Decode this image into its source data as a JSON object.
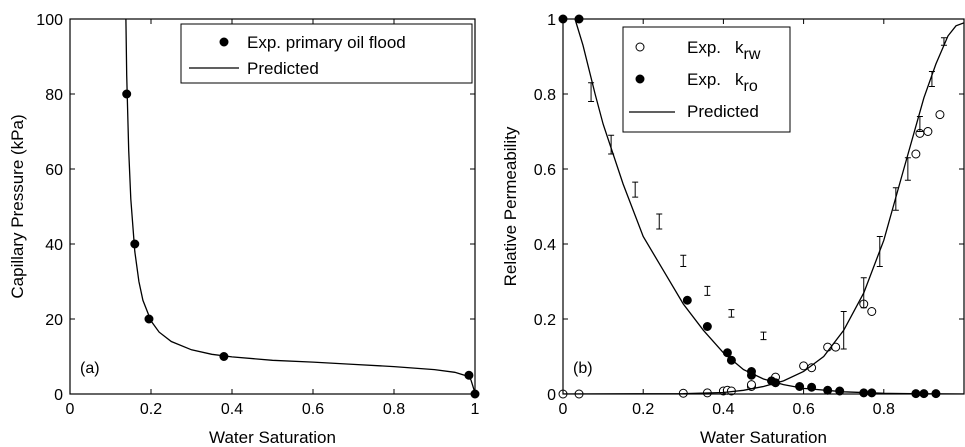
{
  "chart_data": [
    {
      "type": "scatter",
      "panel_label": "(a)",
      "xlabel": "Water Saturation",
      "ylabel": "Capillary Pressure (kPa)",
      "xlim": [
        0,
        1
      ],
      "ylim": [
        0,
        100
      ],
      "xticks": [
        "0",
        "0.2",
        "0.4",
        "0.6",
        "0.8",
        "1"
      ],
      "yticks": [
        "0",
        "20",
        "40",
        "60",
        "80",
        "100"
      ],
      "legend_position": "top-right",
      "grid": false,
      "series": [
        {
          "name": "Exp. primary oil flood",
          "kind": "points",
          "marker": "filled-circle",
          "x": [
            0.14,
            0.16,
            0.195,
            0.38,
            0.985,
            1.0
          ],
          "y": [
            80,
            40,
            20,
            10,
            5,
            0
          ]
        },
        {
          "name": "Predicted",
          "kind": "line",
          "x": [
            0.138,
            0.14,
            0.145,
            0.15,
            0.16,
            0.17,
            0.18,
            0.2,
            0.22,
            0.25,
            0.3,
            0.35,
            0.4,
            0.5,
            0.6,
            0.7,
            0.8,
            0.9,
            0.95,
            0.98,
            0.99,
            1.0
          ],
          "y": [
            100,
            85,
            65,
            52,
            38,
            30,
            25,
            19.5,
            16.5,
            14,
            11.8,
            10.6,
            9.9,
            9.0,
            8.5,
            7.9,
            7.3,
            6.5,
            5.8,
            4.8,
            3.8,
            0.3
          ]
        }
      ]
    },
    {
      "type": "scatter",
      "panel_label": "(b)",
      "xlabel": "Water Saturation",
      "ylabel": "Relative Permeability",
      "xlim": [
        0,
        1
      ],
      "ylim": [
        0,
        1
      ],
      "xticks": [
        "0",
        "0.2",
        "0.4",
        "0.6",
        "0.8"
      ],
      "yticks": [
        "0",
        "0.2",
        "0.4",
        "0.6",
        "0.8",
        "1"
      ],
      "legend_position": "top-left",
      "grid": false,
      "legend": [
        {
          "prefix": "Exp.",
          "symbol": "k",
          "subscript": "rw",
          "marker": "open-circle"
        },
        {
          "prefix": "Exp.",
          "symbol": "k",
          "subscript": "ro",
          "marker": "filled-circle"
        },
        {
          "prefix": "",
          "symbol": "Predicted",
          "subscript": "",
          "marker": "line"
        }
      ],
      "series": [
        {
          "name": "Exp. krw",
          "kind": "points",
          "marker": "open-circle",
          "x": [
            0.0,
            0.04,
            0.3,
            0.36,
            0.4,
            0.41,
            0.42,
            0.47,
            0.47,
            0.53,
            0.6,
            0.62,
            0.66,
            0.68,
            0.75,
            0.77,
            0.88,
            0.89,
            0.91,
            0.94
          ],
          "y": [
            0.0,
            0.0,
            0.002,
            0.003,
            0.008,
            0.01,
            0.008,
            0.02,
            0.025,
            0.045,
            0.075,
            0.07,
            0.125,
            0.125,
            0.24,
            0.22,
            0.64,
            0.695,
            0.7,
            0.745
          ]
        },
        {
          "name": "Exp. kro",
          "kind": "points",
          "marker": "filled-circle",
          "x": [
            0.0,
            0.04,
            0.31,
            0.36,
            0.41,
            0.42,
            0.47,
            0.47,
            0.52,
            0.53,
            0.59,
            0.62,
            0.66,
            0.69,
            0.75,
            0.77,
            0.88,
            0.9,
            0.93
          ],
          "y": [
            1.0,
            1.0,
            0.25,
            0.18,
            0.11,
            0.09,
            0.06,
            0.05,
            0.035,
            0.03,
            0.02,
            0.018,
            0.01,
            0.008,
            0.003,
            0.003,
            0.001,
            0.001,
            0.001
          ]
        },
        {
          "name": "Predicted krw",
          "kind": "line",
          "x": [
            0.0,
            0.3,
            0.4,
            0.45,
            0.5,
            0.55,
            0.6,
            0.65,
            0.7,
            0.75,
            0.8,
            0.85,
            0.9,
            0.93,
            0.96,
            0.98,
            1.0
          ],
          "y": [
            0.0,
            0.001,
            0.004,
            0.01,
            0.02,
            0.035,
            0.06,
            0.1,
            0.17,
            0.27,
            0.41,
            0.6,
            0.79,
            0.88,
            0.955,
            0.982,
            0.99
          ]
        },
        {
          "name": "Predicted kro",
          "kind": "line",
          "x": [
            0.03,
            0.05,
            0.08,
            0.1,
            0.15,
            0.2,
            0.25,
            0.3,
            0.35,
            0.4,
            0.45,
            0.5,
            0.55,
            0.6,
            0.7,
            0.8,
            0.9,
            1.0
          ],
          "y": [
            1.0,
            0.93,
            0.8,
            0.72,
            0.56,
            0.42,
            0.33,
            0.24,
            0.17,
            0.11,
            0.065,
            0.04,
            0.025,
            0.015,
            0.006,
            0.002,
            0.0005,
            0.0
          ]
        },
        {
          "name": "Error bars kro",
          "kind": "errorbars",
          "x": [
            0.07,
            0.12,
            0.18,
            0.24,
            0.3,
            0.36,
            0.42,
            0.5
          ],
          "y": [
            0.805,
            0.665,
            0.545,
            0.46,
            0.355,
            0.275,
            0.215,
            0.155
          ],
          "err": [
            0.025,
            0.025,
            0.02,
            0.02,
            0.015,
            0.012,
            0.01,
            0.01
          ]
        },
        {
          "name": "Error bars krw",
          "kind": "errorbars",
          "x": [
            0.7,
            0.75,
            0.79,
            0.83,
            0.86,
            0.89,
            0.92,
            0.95
          ],
          "y": [
            0.17,
            0.27,
            0.38,
            0.52,
            0.6,
            0.72,
            0.84,
            0.94
          ],
          "err": [
            0.05,
            0.04,
            0.04,
            0.03,
            0.03,
            0.02,
            0.02,
            0.01
          ]
        }
      ]
    }
  ]
}
